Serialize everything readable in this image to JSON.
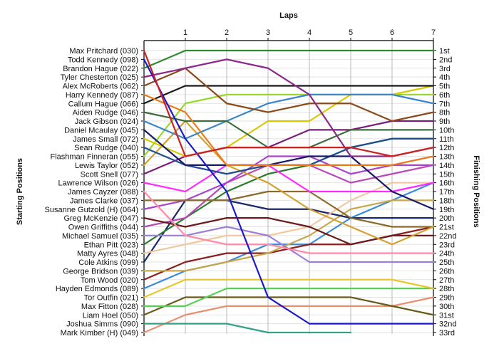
{
  "chart_data": {
    "type": "line",
    "title": "",
    "xlabel": "Laps",
    "ylabel": "Starting Positions",
    "y2label": "Finishing Positions",
    "x_ticks": [
      1,
      2,
      3,
      4,
      5,
      6,
      7
    ],
    "xlim": [
      0,
      7
    ],
    "ylim": [
      1,
      33
    ],
    "y_inverted": true,
    "grid": true,
    "start_labels": [
      "Max Pritchard (030)",
      "Todd Kennedy (098)",
      "Brandon Hague (022)",
      "Tyler Chesterton (025)",
      "Alex McRoberts (062)",
      "Harry Kennedy (087)",
      "Callum Hague (066)",
      "Aiden Rudge (046)",
      "Jack Gibson (024)",
      "Daniel Mcaulay (045)",
      "James Small (072)",
      "Sean Rudge (040)",
      "Flashman Finneran (055)",
      "Lewis Taylor (052)",
      "Scott Snell (077)",
      "Lawrence Wilson (026)",
      "James Cayzer (088)",
      "James Clarke (037)",
      "Susanne Gutzold (H) (064)",
      "Greg McKenzie (047)",
      "Owen Griffiths (044)",
      "Michael Samuel (035)",
      "Ethan Pitt (023)",
      "Matty Ayres (048)",
      "Cole Atkins (099)",
      "George Bridson (039)",
      "Tom Wood (020)",
      "Hayden Edmonds (089)",
      "Tor Outfin (021)",
      "Max Fitton (028)",
      "Liam Hoel (050)",
      "Joshua Simms (090)",
      "Mark Kimber (H) (049)"
    ],
    "finish_labels": [
      "1st",
      "2nd",
      "3rd",
      "4th",
      "5th",
      "6th",
      "7th",
      "8th",
      "9th",
      "10th",
      "11th",
      "12th",
      "13th",
      "14th",
      "15th",
      "16th",
      "17th",
      "18th",
      "19th",
      "20th",
      "21st",
      "22nd",
      "23rd",
      "24th",
      "25th",
      "26th",
      "27th",
      "28th",
      "29th",
      "30th",
      "31st",
      "32nd",
      "33rd"
    ],
    "series": [
      {
        "start": 1,
        "positions": [
          1,
          13,
          12,
          12,
          12,
          12,
          13,
          12
        ],
        "color": "#cc2222"
      },
      {
        "start": 2,
        "positions": [
          2,
          11,
          17,
          29,
          32,
          32,
          32,
          32
        ],
        "color": "#1a1acc"
      },
      {
        "start": 3,
        "positions": [
          3,
          1,
          1,
          1,
          1,
          1,
          1,
          1
        ],
        "color": "#2e8b2e"
      },
      {
        "start": 4,
        "positions": [
          4,
          3,
          2,
          3,
          6,
          13,
          13,
          12
        ],
        "color": "#8b2a8b"
      },
      {
        "start": 5,
        "positions": [
          5,
          3,
          7,
          8,
          7,
          7,
          9,
          8
        ],
        "color": "#8b4a1a"
      },
      {
        "start": 6,
        "positions": [
          6,
          8,
          14,
          14,
          14,
          14,
          14,
          13
        ],
        "color": "#e87a1a"
      },
      {
        "start": 7,
        "positions": [
          7,
          5,
          5,
          5,
          5,
          5,
          5,
          5
        ],
        "color": "#1a1a1a"
      },
      {
        "start": 8,
        "positions": [
          8,
          9,
          9,
          12,
          12,
          10,
          10,
          10
        ],
        "color": "#3b6e3b"
      },
      {
        "start": 9,
        "positions": [
          9,
          11,
          9,
          7,
          6,
          6,
          6,
          7
        ],
        "color": "#3a86c8"
      },
      {
        "start": 10,
        "positions": [
          10,
          14,
          14,
          14,
          13,
          13,
          17,
          19
        ],
        "color": "#1a1a6a"
      },
      {
        "start": 11,
        "positions": [
          11,
          13,
          12,
          9,
          9,
          6,
          6,
          5
        ],
        "color": "#d8c800"
      },
      {
        "start": 12,
        "positions": [
          12,
          14,
          15,
          14,
          14,
          12,
          11,
          11
        ],
        "color": "#1f4e8c"
      },
      {
        "start": 13,
        "positions": [
          13,
          7,
          6,
          6,
          6,
          6,
          6,
          6
        ],
        "color": "#98d828"
      },
      {
        "start": 14,
        "positions": [
          14,
          9,
          14,
          16,
          19,
          21,
          23,
          21
        ],
        "color": "#d4a030"
      },
      {
        "start": 15,
        "positions": [
          15,
          13,
          12,
          12,
          10,
          10,
          9,
          9
        ],
        "color": "#7a1e7a"
      },
      {
        "start": 16,
        "positions": [
          16,
          17,
          14,
          14,
          17,
          17,
          17,
          16
        ],
        "color": "#ff2aff"
      },
      {
        "start": 17,
        "positions": [
          17,
          22,
          23,
          23,
          24,
          24,
          24,
          24
        ],
        "color": "#ff8aa8"
      },
      {
        "start": 18,
        "positions": [
          18,
          18,
          18,
          17,
          17,
          20,
          21,
          21
        ],
        "color": "#8b6a2a"
      },
      {
        "start": 19,
        "positions": [
          19,
          18,
          16,
          13,
          13,
          15,
          14,
          14
        ],
        "color": "#aa44cc"
      },
      {
        "start": 20,
        "positions": [
          20,
          21,
          20,
          20,
          21,
          23,
          22,
          22
        ],
        "color": "#6a1a1a"
      },
      {
        "start": 21,
        "positions": [
          21,
          20,
          16,
          14,
          14,
          16,
          15,
          14
        ],
        "color": "#b84ab8"
      },
      {
        "start": 22,
        "positions": [
          22,
          22,
          21,
          22,
          25,
          25,
          25,
          25
        ],
        "color": "#9a80d8"
      },
      {
        "start": 23,
        "positions": [
          23,
          20,
          17,
          15,
          14,
          12,
          11,
          11
        ],
        "color": "#2a7a2a"
      },
      {
        "start": 24,
        "positions": [
          24,
          23,
          22,
          22,
          21,
          18,
          16,
          16
        ],
        "color": "#f0c8a0"
      },
      {
        "start": 25,
        "positions": [
          25,
          18,
          18,
          19,
          19,
          20,
          20,
          20
        ],
        "color": "#1a2a6a"
      },
      {
        "start": 26,
        "positions": [
          26,
          26,
          25,
          24,
          22,
          19,
          18,
          18
        ],
        "color": "#c8a848"
      },
      {
        "start": 27,
        "positions": [
          27,
          25,
          24,
          24,
          23,
          23,
          22,
          21
        ],
        "color": "#8b1e1e"
      },
      {
        "start": 28,
        "positions": [
          28,
          26,
          25,
          23,
          23,
          20,
          18,
          16
        ],
        "color": "#3a8ad8"
      },
      {
        "start": 29,
        "positions": [
          29,
          27,
          27,
          27,
          27,
          27,
          27,
          28
        ],
        "color": "#e8c828"
      },
      {
        "start": 30,
        "positions": [
          30,
          30,
          28,
          28,
          28,
          28,
          28,
          28
        ],
        "color": "#58d058"
      },
      {
        "start": 31,
        "positions": [
          31,
          29,
          29,
          29,
          29,
          29,
          30,
          31
        ],
        "color": "#6a5a1a"
      },
      {
        "start": 32,
        "positions": [
          32,
          32,
          32,
          33,
          33,
          33
        ],
        "color": "#34a08a"
      },
      {
        "start": 33,
        "positions": [
          33,
          31,
          30,
          30,
          30,
          30,
          30,
          29
        ],
        "color": "#e89070"
      }
    ]
  }
}
